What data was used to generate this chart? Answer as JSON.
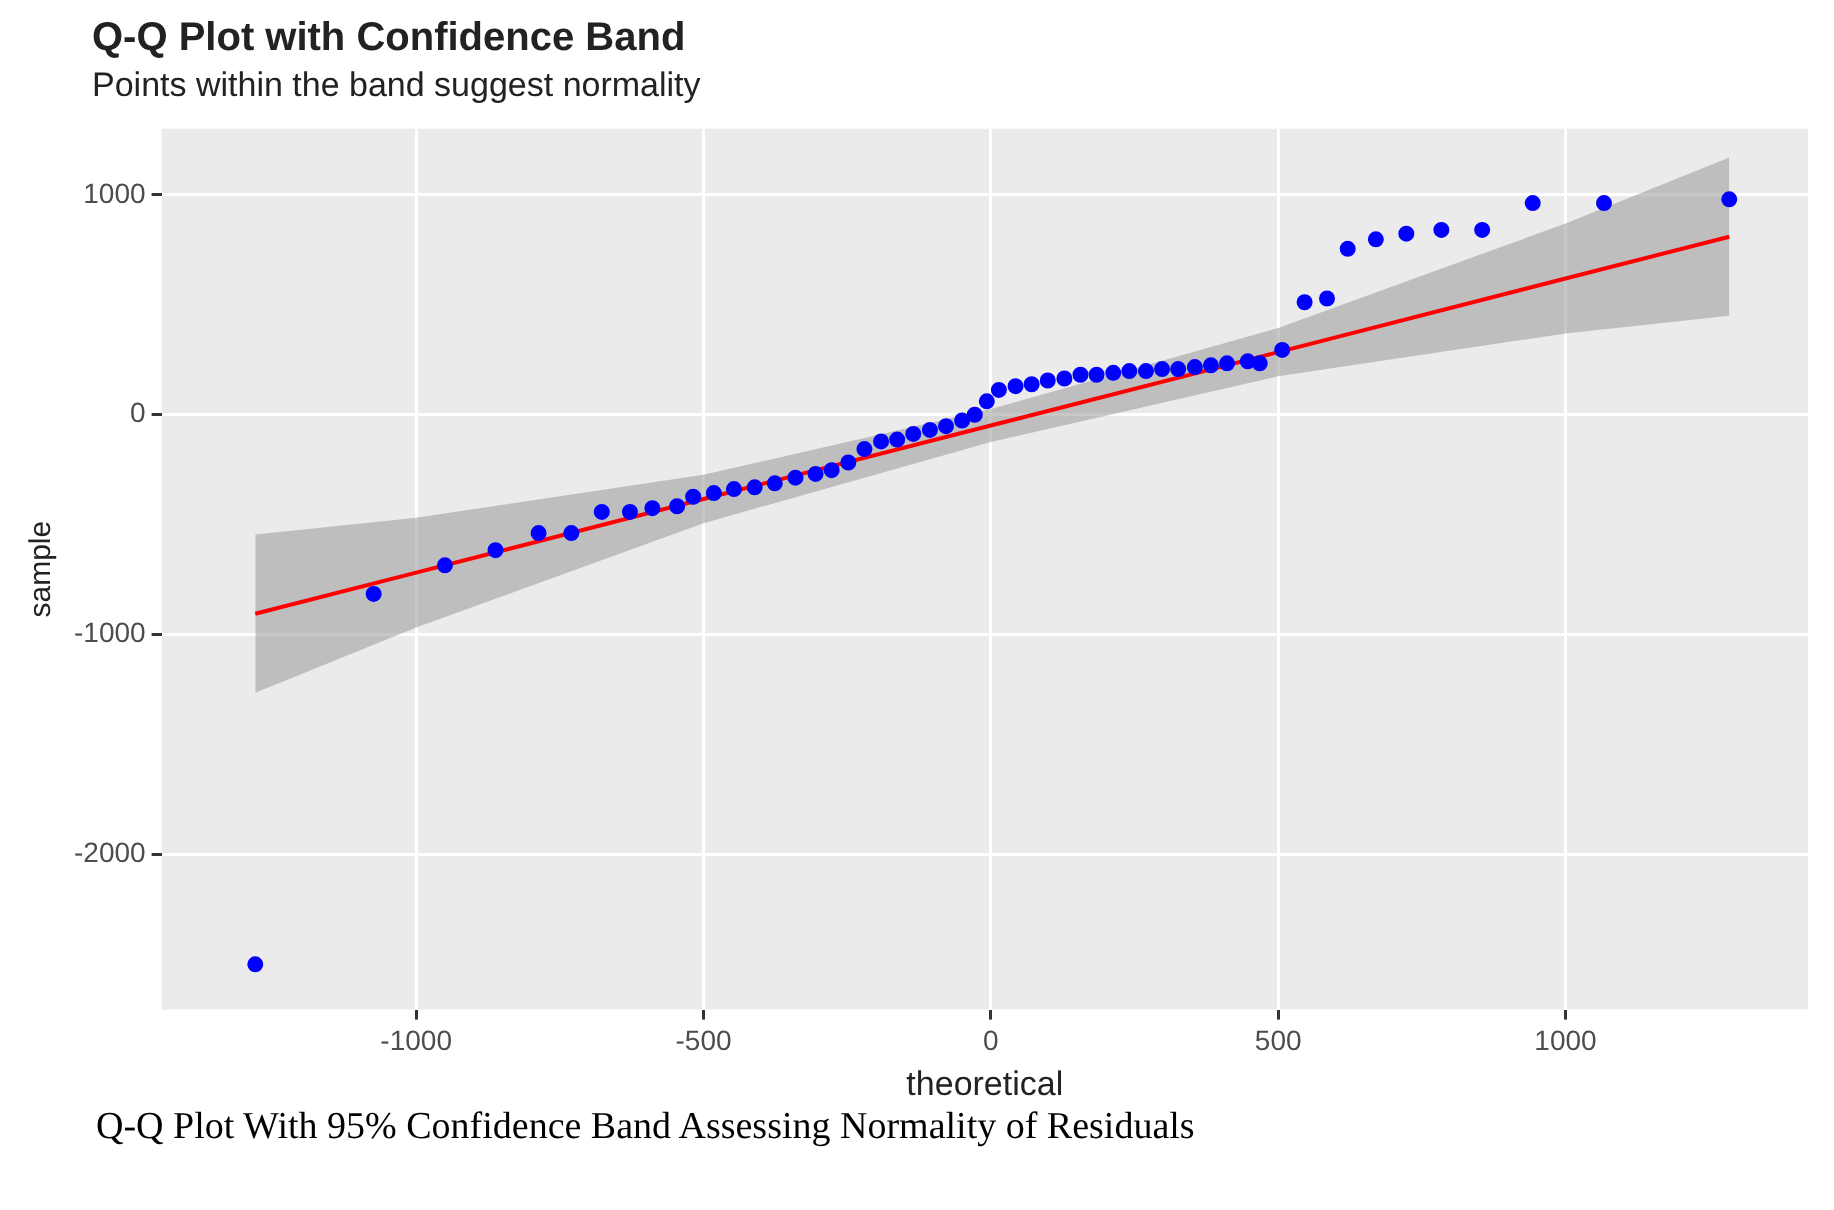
{
  "chart_data": {
    "type": "scatter",
    "title": "Q-Q Plot with Confidence Band",
    "subtitle": "Points within the band suggest normality",
    "xlabel": "theoretical",
    "ylabel": "sample",
    "annotations": [
      "Q-Q Plot With 95% Confidence Band Assessing Normality of Residuals"
    ],
    "xlim": [
      -1443,
      1422
    ],
    "ylim": [
      -2706,
      1301
    ],
    "xticks": [
      -1000,
      -500,
      0,
      500,
      1000
    ],
    "yticks": [
      -2000,
      -1000,
      0,
      1000
    ],
    "grid": true,
    "series": [
      {
        "marker": "circle",
        "color": "#0000ff",
        "x": [
          -1280,
          -1074,
          -950,
          -862,
          -787,
          -730,
          -677,
          -628,
          -589,
          -546,
          -518,
          -482,
          -447,
          -411,
          -376,
          -340,
          -305,
          -277,
          -248,
          -220,
          -191,
          -163,
          -135,
          -106,
          -78,
          -50,
          -28,
          -7,
          14,
          43,
          71,
          99,
          128,
          156,
          184,
          213,
          241,
          270,
          298,
          326,
          355,
          383,
          411,
          447,
          468,
          507,
          546,
          585,
          621,
          670,
          723,
          784,
          855,
          943,
          1067,
          1285
        ],
        "values": [
          -2500,
          -815,
          -685,
          -616,
          -538,
          -538,
          -442,
          -442,
          -425,
          -416,
          -373,
          -356,
          -338,
          -330,
          -312,
          -286,
          -269,
          -252,
          -217,
          -156,
          -121,
          -113,
          -87,
          -69,
          -52,
          -26,
          0,
          61,
          113,
          130,
          139,
          156,
          165,
          182,
          182,
          191,
          199,
          199,
          208,
          208,
          217,
          225,
          234,
          243,
          234,
          295,
          512,
          529,
          755,
          798,
          824,
          841,
          841,
          963,
          963,
          980
        ]
      },
      {
        "type": "line",
        "color": "#ff0000",
        "x": [
          -1280,
          -1000,
          -500,
          0,
          500,
          1000,
          1285
        ],
        "values": [
          -905,
          -718,
          -383,
          -49,
          285,
          620,
          810
        ],
        "lower": [
          -1265,
          -968,
          -493,
          -124,
          175,
          370,
          450
        ],
        "upper": [
          -545,
          -468,
          -273,
          26,
          395,
          870,
          1170
        ]
      }
    ]
  }
}
